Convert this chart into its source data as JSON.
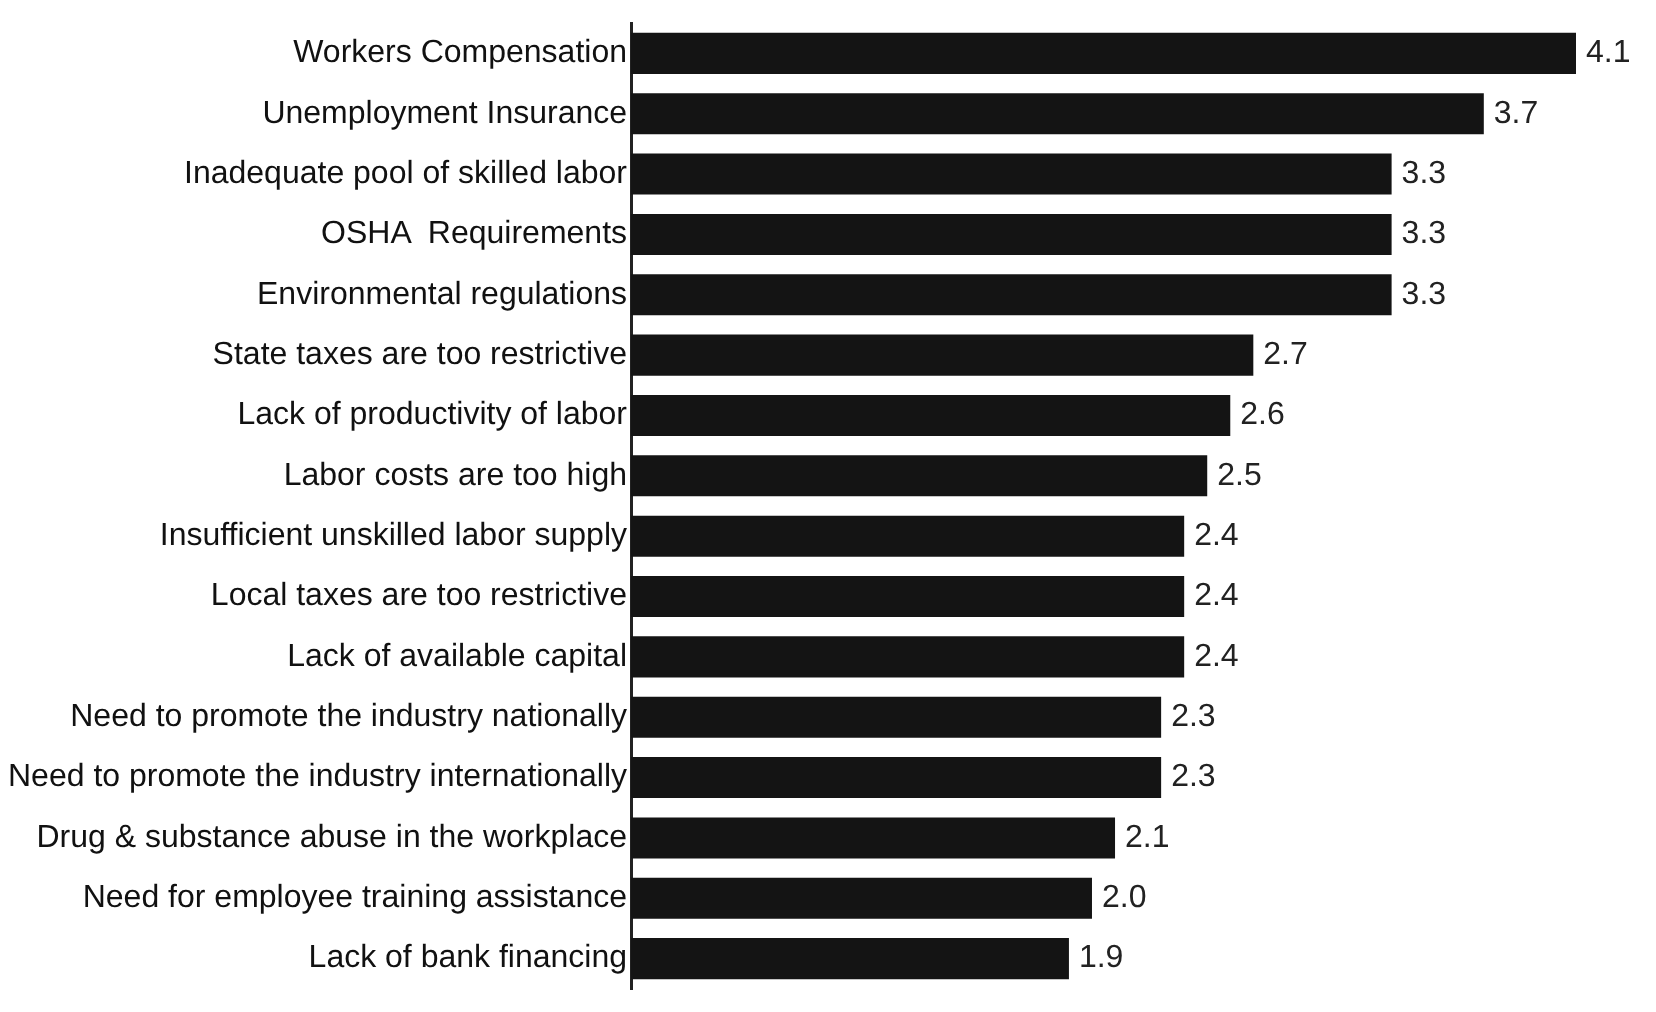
{
  "chart_data": {
    "type": "bar",
    "orientation": "horizontal",
    "legend": false,
    "color": "#141414",
    "categories": [
      "Workers Compensation",
      "Unemployment Insurance",
      "Inadequate pool of skilled labor",
      "OSHA  Requirements",
      "Environmental regulations",
      "State taxes are too restrictive",
      "Lack of productivity of labor",
      "Labor costs are too high",
      "Insufficient unskilled labor supply",
      "Local taxes are too restrictive",
      "Lack of available capital",
      "Need to promote the industry nationally",
      "Need to promote the industry internationally",
      "Drug & substance abuse in the workplace",
      "Need for employee training assistance",
      "Lack of bank financing"
    ],
    "values": [
      4.1,
      3.7,
      3.3,
      3.3,
      3.3,
      2.7,
      2.6,
      2.5,
      2.4,
      2.4,
      2.4,
      2.3,
      2.3,
      2.1,
      2.0,
      1.9
    ],
    "value_labels": [
      "4.1",
      "3.7",
      "3.3",
      "3.3",
      "3.3",
      "2.7",
      "2.6",
      "2.5",
      "2.4",
      "2.4",
      "2.4",
      "2.3",
      "2.3",
      "2.1",
      "2.0",
      "1.9"
    ]
  }
}
